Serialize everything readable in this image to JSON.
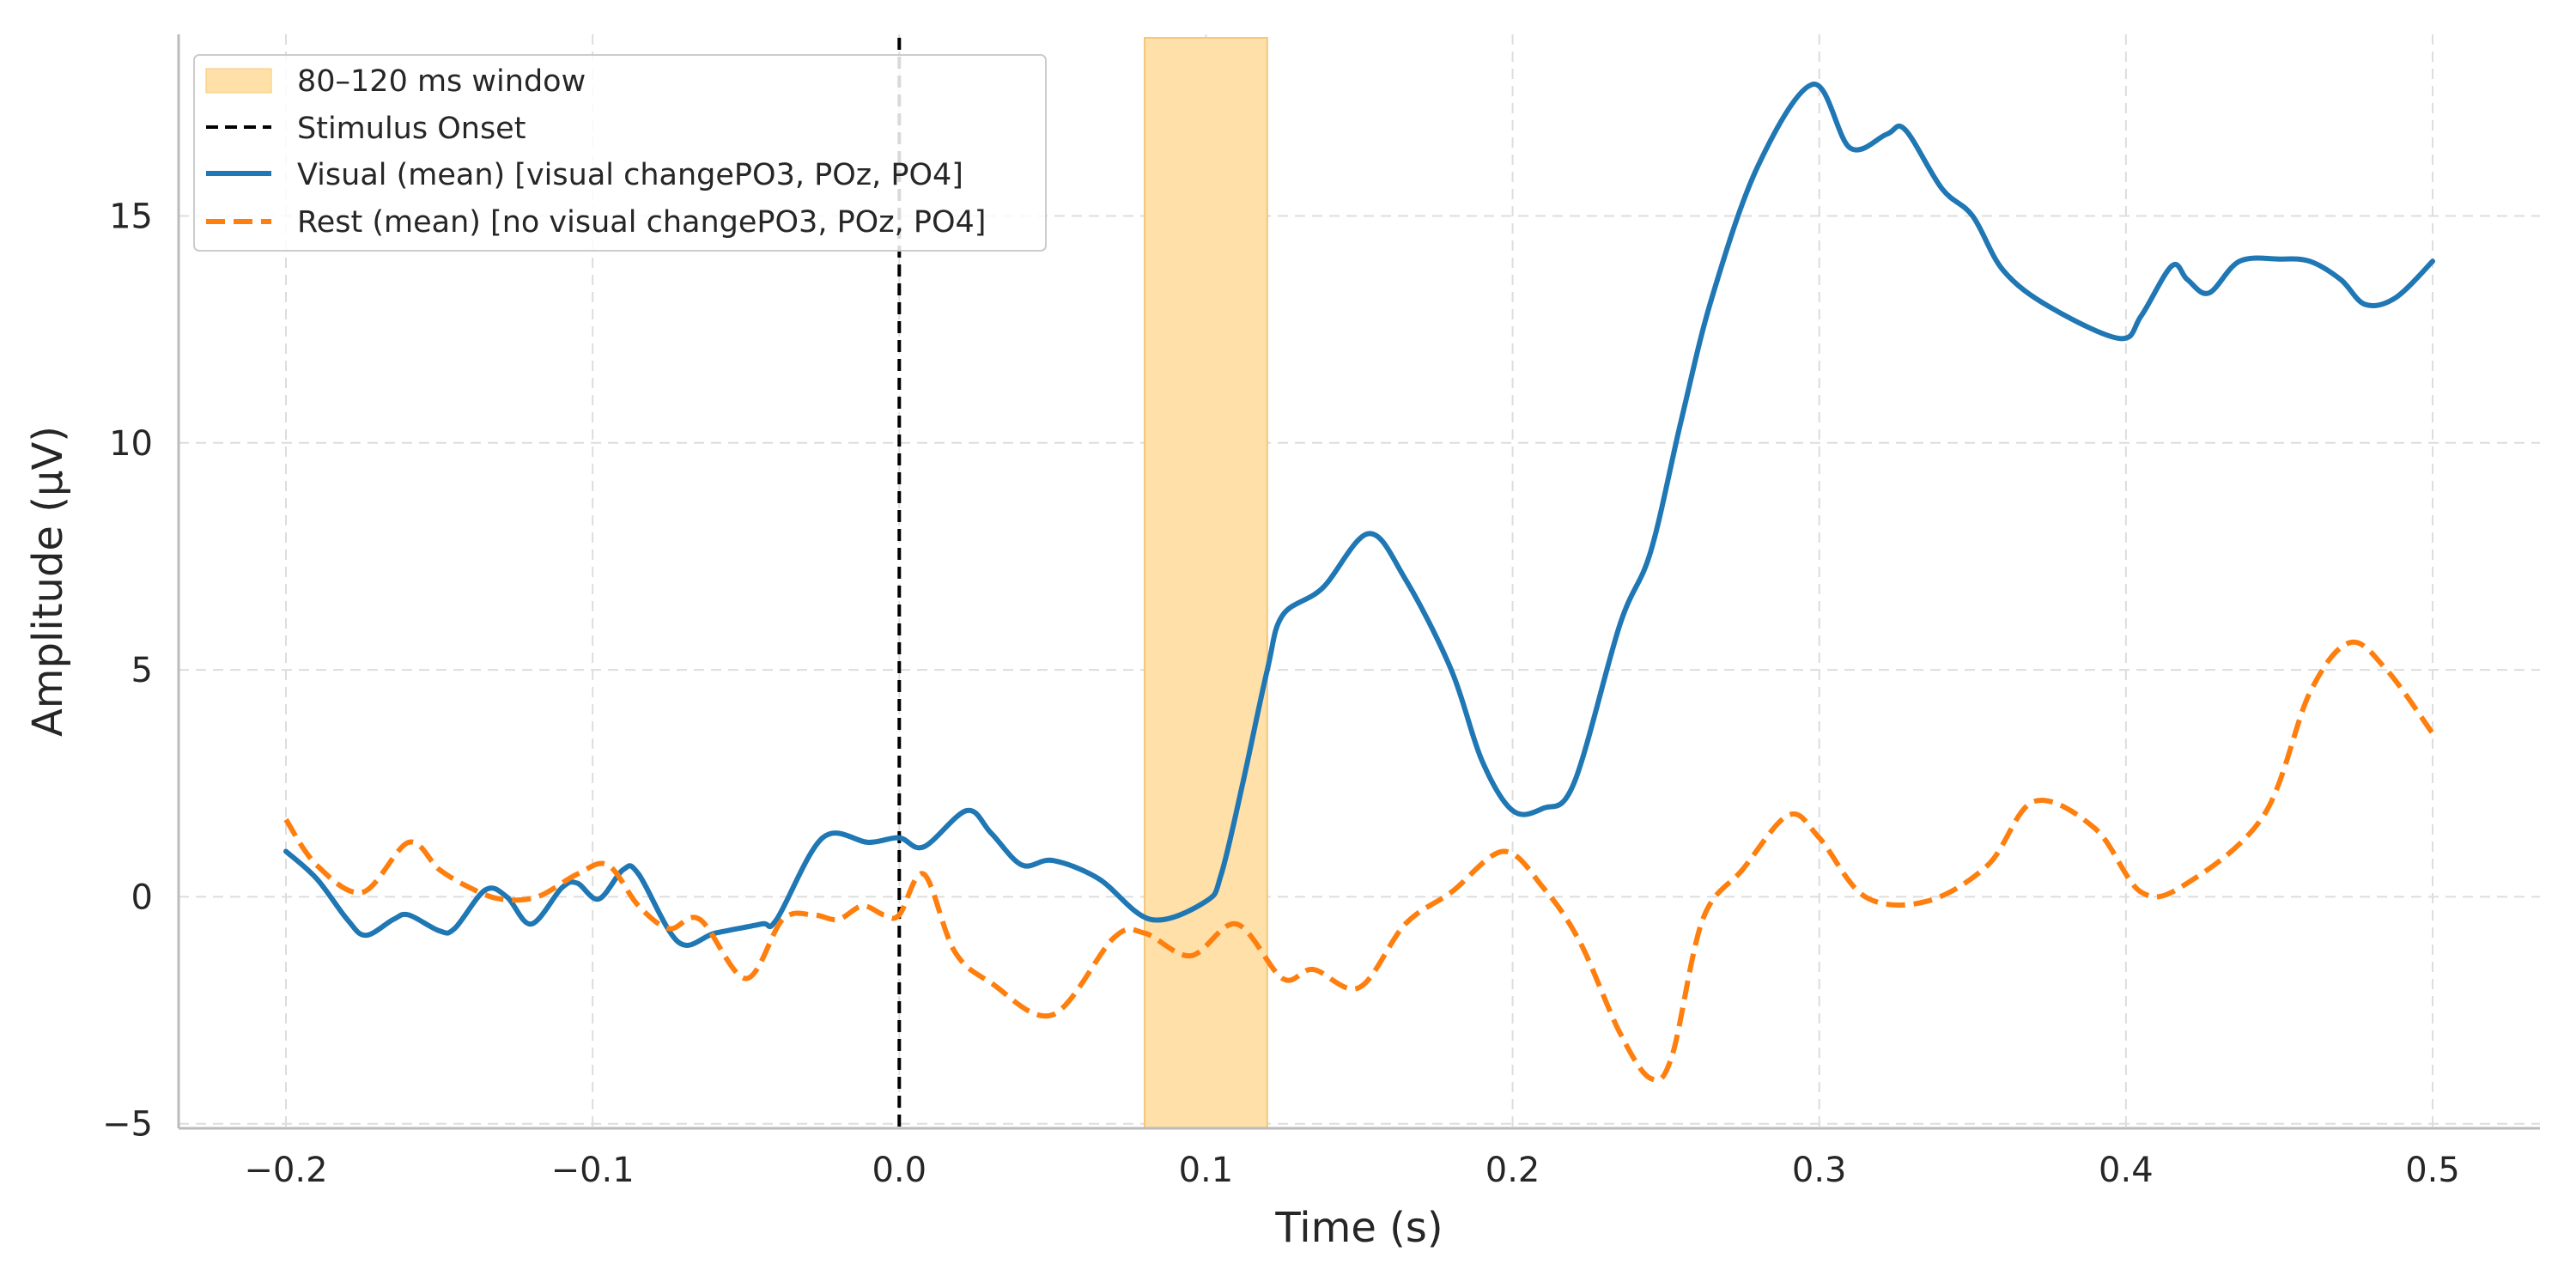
{
  "colors": {
    "visual": "#1f77b4",
    "rest": "#ff7f0e",
    "window": "#ffe0a8",
    "onset": "#000000",
    "grid": "#dddddd",
    "axis": "#bbbbbb"
  },
  "chart_data": {
    "type": "line",
    "title": "",
    "xlabel": "Time (s)",
    "ylabel": "Amplitude (µV)",
    "xlim": [
      -0.235,
      0.535
    ],
    "ylim": [
      -5.1,
      19.0
    ],
    "x_ticks": [
      -0.2,
      -0.1,
      0.0,
      0.1,
      0.2,
      0.3,
      0.4,
      0.5
    ],
    "x_tick_labels": [
      "−0.2",
      "−0.1",
      "0.0",
      "0.1",
      "0.2",
      "0.3",
      "0.4",
      "0.5"
    ],
    "y_ticks": [
      -5,
      0,
      5,
      10,
      15
    ],
    "y_tick_labels": [
      "−5",
      "0",
      "5",
      "10",
      "15"
    ],
    "grid": true,
    "legend_position": "top-left",
    "shaded_window": {
      "label": "80–120 ms window",
      "x_start": 0.08,
      "x_end": 0.12
    },
    "vertical_line": {
      "label": "Stimulus Onset",
      "x": 0.0
    },
    "series": [
      {
        "name": "Visual (mean) [visual changePO3, POz, PO4]",
        "style": "solid",
        "points": [
          [
            -0.2,
            1.0
          ],
          [
            -0.19,
            0.4
          ],
          [
            -0.18,
            -0.5
          ],
          [
            -0.174,
            -0.85
          ],
          [
            -0.165,
            -0.5
          ],
          [
            -0.16,
            -0.4
          ],
          [
            -0.15,
            -0.75
          ],
          [
            -0.145,
            -0.7
          ],
          [
            -0.135,
            0.15
          ],
          [
            -0.128,
            0.0
          ],
          [
            -0.12,
            -0.6
          ],
          [
            -0.11,
            0.2
          ],
          [
            -0.105,
            0.3
          ],
          [
            -0.098,
            -0.05
          ],
          [
            -0.09,
            0.6
          ],
          [
            -0.085,
            0.5
          ],
          [
            -0.072,
            -1.0
          ],
          [
            -0.06,
            -0.8
          ],
          [
            -0.045,
            -0.6
          ],
          [
            -0.04,
            -0.5
          ],
          [
            -0.025,
            1.3
          ],
          [
            -0.01,
            1.2
          ],
          [
            0.0,
            1.3
          ],
          [
            0.008,
            1.1
          ],
          [
            0.022,
            1.9
          ],
          [
            0.03,
            1.4
          ],
          [
            0.04,
            0.7
          ],
          [
            0.05,
            0.8
          ],
          [
            0.065,
            0.4
          ],
          [
            0.082,
            -0.5
          ],
          [
            0.1,
            -0.1
          ],
          [
            0.105,
            0.5
          ],
          [
            0.112,
            2.5
          ],
          [
            0.12,
            5.0
          ],
          [
            0.125,
            6.2
          ],
          [
            0.138,
            6.8
          ],
          [
            0.153,
            8.0
          ],
          [
            0.165,
            7.0
          ],
          [
            0.18,
            5.0
          ],
          [
            0.19,
            3.0
          ],
          [
            0.2,
            1.9
          ],
          [
            0.21,
            1.95
          ],
          [
            0.22,
            2.5
          ],
          [
            0.235,
            6.0
          ],
          [
            0.245,
            7.6
          ],
          [
            0.255,
            10.5
          ],
          [
            0.265,
            13.2
          ],
          [
            0.28,
            16.1
          ],
          [
            0.298,
            17.9
          ],
          [
            0.31,
            16.5
          ],
          [
            0.322,
            16.8
          ],
          [
            0.328,
            16.9
          ],
          [
            0.34,
            15.6
          ],
          [
            0.35,
            15.0
          ],
          [
            0.36,
            13.8
          ],
          [
            0.375,
            13.0
          ],
          [
            0.398,
            12.3
          ],
          [
            0.405,
            12.8
          ],
          [
            0.415,
            13.9
          ],
          [
            0.42,
            13.6
          ],
          [
            0.427,
            13.3
          ],
          [
            0.437,
            14.0
          ],
          [
            0.45,
            14.05
          ],
          [
            0.46,
            14.0
          ],
          [
            0.47,
            13.6
          ],
          [
            0.478,
            13.05
          ],
          [
            0.488,
            13.2
          ],
          [
            0.5,
            14.0
          ]
        ]
      },
      {
        "name": "Rest (mean) [no visual changePO3, POz, PO4]",
        "style": "dashed",
        "points": [
          [
            -0.2,
            1.7
          ],
          [
            -0.19,
            0.7
          ],
          [
            -0.175,
            0.1
          ],
          [
            -0.16,
            1.2
          ],
          [
            -0.15,
            0.6
          ],
          [
            -0.14,
            0.2
          ],
          [
            -0.13,
            -0.05
          ],
          [
            -0.118,
            0.0
          ],
          [
            -0.105,
            0.5
          ],
          [
            -0.095,
            0.7
          ],
          [
            -0.085,
            -0.2
          ],
          [
            -0.075,
            -0.7
          ],
          [
            -0.065,
            -0.5
          ],
          [
            -0.05,
            -1.8
          ],
          [
            -0.038,
            -0.5
          ],
          [
            -0.028,
            -0.4
          ],
          [
            -0.02,
            -0.5
          ],
          [
            -0.012,
            -0.2
          ],
          [
            -0.005,
            -0.4
          ],
          [
            0.0,
            -0.4
          ],
          [
            0.008,
            0.5
          ],
          [
            0.018,
            -1.2
          ],
          [
            0.03,
            -1.9
          ],
          [
            0.05,
            -2.6
          ],
          [
            0.07,
            -0.9
          ],
          [
            0.08,
            -0.8
          ],
          [
            0.095,
            -1.3
          ],
          [
            0.11,
            -0.6
          ],
          [
            0.125,
            -1.8
          ],
          [
            0.135,
            -1.6
          ],
          [
            0.15,
            -2.0
          ],
          [
            0.165,
            -0.6
          ],
          [
            0.18,
            0.1
          ],
          [
            0.197,
            1.0
          ],
          [
            0.21,
            0.2
          ],
          [
            0.222,
            -1.0
          ],
          [
            0.235,
            -3.0
          ],
          [
            0.245,
            -4.0
          ],
          [
            0.252,
            -3.5
          ],
          [
            0.262,
            -0.5
          ],
          [
            0.275,
            0.6
          ],
          [
            0.29,
            1.8
          ],
          [
            0.3,
            1.3
          ],
          [
            0.315,
            0.0
          ],
          [
            0.335,
            -0.1
          ],
          [
            0.355,
            0.7
          ],
          [
            0.37,
            2.1
          ],
          [
            0.39,
            1.5
          ],
          [
            0.405,
            0.1
          ],
          [
            0.42,
            0.3
          ],
          [
            0.445,
            1.8
          ],
          [
            0.46,
            4.5
          ],
          [
            0.473,
            5.6
          ],
          [
            0.485,
            5.0
          ],
          [
            0.5,
            3.6
          ]
        ]
      }
    ]
  }
}
